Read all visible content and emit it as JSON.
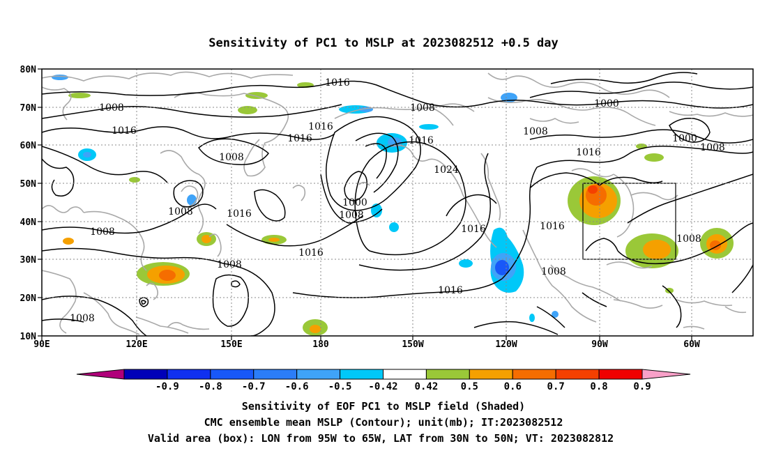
{
  "title": "Sensitivity of PC1 to MSLP at 2023082512 +0.5 day",
  "lat_labels": [
    "80N",
    "70N",
    "60N",
    "50N",
    "40N",
    "30N",
    "20N",
    "10N"
  ],
  "lon_labels": [
    "90E",
    "120E",
    "150E",
    "180",
    "150W",
    "120W",
    "90W",
    "60W"
  ],
  "colorbar": {
    "labels": [
      "-0.9",
      "-0.8",
      "-0.7",
      "-0.6",
      "-0.5",
      "-0.42",
      "0.42",
      "0.5",
      "0.6",
      "0.7",
      "0.8",
      "0.9"
    ],
    "colors": [
      "#b0007a",
      "#0000b8",
      "#1030f0",
      "#1858f8",
      "#2b7df8",
      "#3fa3f8",
      "#00c8f8",
      "#ffffff",
      "#9ac838",
      "#f5a000",
      "#f56d00",
      "#f54000",
      "#f00000",
      "#f8a0c8"
    ]
  },
  "contour_labels": [
    "1016",
    "1008",
    "1008",
    "1016",
    "1016",
    "1008",
    "1016",
    "1016",
    "1024",
    "1000",
    "1008",
    "1008",
    "1000",
    "1000",
    "1008",
    "1016",
    "1008",
    "1016",
    "1008",
    "1016",
    "1016",
    "1016",
    "1008",
    "1008",
    "1008",
    "1008",
    "1016"
  ],
  "caption": {
    "line1": "Sensitivity of EOF PC1 to MSLP field (Shaded)",
    "line2": "CMC ensemble mean MSLP (Contour); unit(mb); IT:2023082512",
    "line3": "Valid area (box): LON from 95W to 65W, LAT from 30N to 50N; VT: 2023082812"
  },
  "valid_box": {
    "lon_from": "95W",
    "lon_to": "65W",
    "lat_from": "30N",
    "lat_to": "50N"
  },
  "sensitivity_colors": {
    "positive_low": "#9ac838",
    "positive_mid": "#f5a000",
    "positive_high": "#f56d00",
    "positive_max": "#f54000",
    "negative_low": "#00c8f8",
    "negative_mid": "#3fa3f8",
    "negative_high": "#1858f8"
  }
}
